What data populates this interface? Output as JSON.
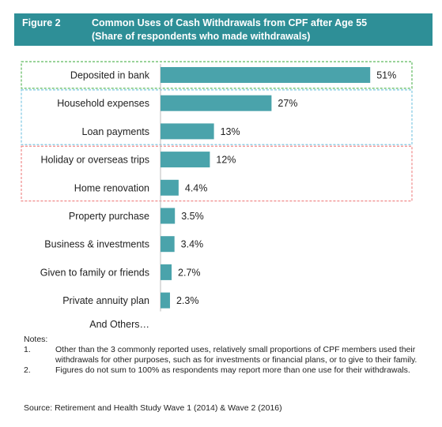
{
  "header": {
    "figure_label": "Figure 2",
    "title_line1": "Common Uses of Cash Withdrawals from CPF after Age 55",
    "title_line2": "(Share of respondents who made withdrawals)"
  },
  "chart_data": {
    "type": "bar",
    "orientation": "horizontal",
    "categories": [
      "Deposited in bank",
      "Household expenses",
      "Loan payments",
      "Holiday or overseas trips",
      "Home renovation",
      "Property purchase",
      "Business & investments",
      "Given to family or friends",
      "Private annuity plan"
    ],
    "values": [
      51,
      27,
      13,
      12,
      4.4,
      3.5,
      3.4,
      2.7,
      2.3
    ],
    "value_labels": [
      "51%",
      "27%",
      "13%",
      "12%",
      "4.4%",
      "3.5%",
      "3.4%",
      "2.7%",
      "2.3%"
    ],
    "extra_category": "And Others…",
    "bar_color": "#4aa3ab",
    "group_boxes": [
      {
        "from": 0,
        "to": 0,
        "color": "#5cb85c"
      },
      {
        "from": 1,
        "to": 2,
        "color": "#7ec8e3"
      },
      {
        "from": 3,
        "to": 4,
        "color": "#f08a8a"
      }
    ]
  },
  "notes": {
    "heading": "Notes:",
    "items": [
      {
        "num": "1.",
        "text": "Other than the 3 commonly reported uses, relatively small proportions of CPF members used their withdrawals for other purposes, such as for investments or financial plans, or to give to their family."
      },
      {
        "num": "2.",
        "text": "Figures do not sum to 100% as respondents may report more than one use for their withdrawals."
      }
    ]
  },
  "source": "Source: Retirement and Health Study Wave 1 (2014) & Wave 2 (2016)"
}
